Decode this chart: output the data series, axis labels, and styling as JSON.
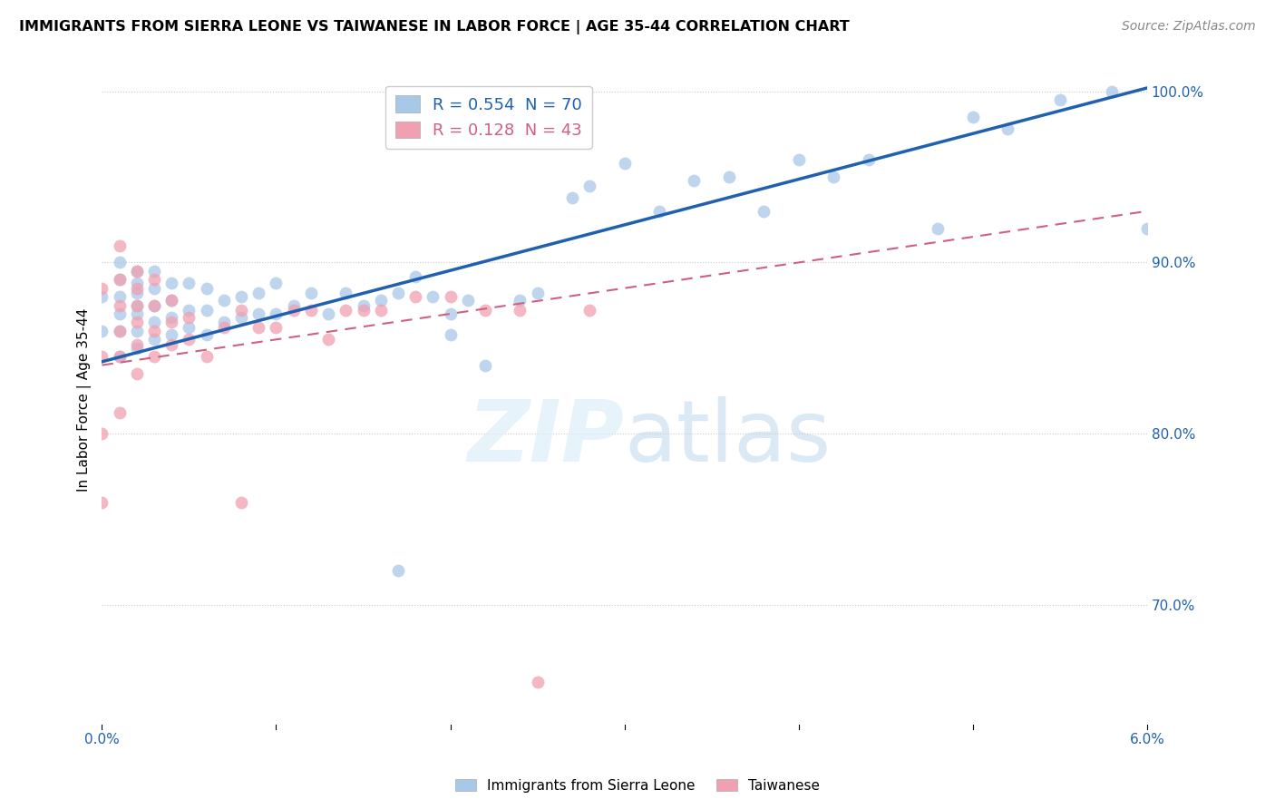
{
  "title": "IMMIGRANTS FROM SIERRA LEONE VS TAIWANESE IN LABOR FORCE | AGE 35-44 CORRELATION CHART",
  "source": "Source: ZipAtlas.com",
  "ylabel": "In Labor Force | Age 35-44",
  "legend_blue_R": "0.554",
  "legend_blue_N": "70",
  "legend_pink_R": "0.128",
  "legend_pink_N": "43",
  "legend_blue_label": "Immigrants from Sierra Leone",
  "legend_pink_label": "Taiwanese",
  "xlim": [
    0.0,
    0.06
  ],
  "ylim": [
    0.63,
    1.01
  ],
  "yticks": [
    0.7,
    0.8,
    0.9,
    1.0
  ],
  "ytick_labels": [
    "70.0%",
    "80.0%",
    "90.0%",
    "100.0%"
  ],
  "xticks": [
    0.0,
    0.01,
    0.02,
    0.03,
    0.04,
    0.05,
    0.06
  ],
  "xtick_labels": [
    "0.0%",
    "",
    "",
    "",
    "",
    "",
    "6.0%"
  ],
  "blue_color": "#a8c8e8",
  "pink_color": "#f0a0b0",
  "blue_line_color": "#2060b0",
  "pink_line_color": "#d06080",
  "watermark_zip": "ZIP",
  "watermark_atlas": "atlas",
  "blue_line_x0": 0.0,
  "blue_line_y0": 0.842,
  "blue_line_x1": 0.06,
  "blue_line_y1": 1.002,
  "pink_line_x0": 0.0,
  "pink_line_y0": 0.84,
  "pink_line_x1": 0.06,
  "pink_line_y1": 0.93,
  "blue_scatter_x": [
    0.0,
    0.0,
    0.001,
    0.001,
    0.001,
    0.001,
    0.001,
    0.001,
    0.002,
    0.002,
    0.002,
    0.002,
    0.002,
    0.002,
    0.002,
    0.003,
    0.003,
    0.003,
    0.003,
    0.003,
    0.004,
    0.004,
    0.004,
    0.004,
    0.005,
    0.005,
    0.005,
    0.006,
    0.006,
    0.006,
    0.007,
    0.007,
    0.008,
    0.008,
    0.009,
    0.009,
    0.01,
    0.01,
    0.011,
    0.012,
    0.013,
    0.014,
    0.015,
    0.016,
    0.017,
    0.018,
    0.019,
    0.02,
    0.021,
    0.022,
    0.024,
    0.025,
    0.027,
    0.028,
    0.03,
    0.032,
    0.034,
    0.036,
    0.038,
    0.04,
    0.042,
    0.044,
    0.017,
    0.02,
    0.048,
    0.05,
    0.052,
    0.055,
    0.058,
    0.06
  ],
  "blue_scatter_y": [
    0.86,
    0.88,
    0.845,
    0.86,
    0.87,
    0.88,
    0.89,
    0.9,
    0.85,
    0.86,
    0.87,
    0.875,
    0.882,
    0.888,
    0.895,
    0.855,
    0.865,
    0.875,
    0.885,
    0.895,
    0.858,
    0.868,
    0.878,
    0.888,
    0.862,
    0.872,
    0.888,
    0.858,
    0.872,
    0.885,
    0.865,
    0.878,
    0.868,
    0.88,
    0.87,
    0.882,
    0.87,
    0.888,
    0.875,
    0.882,
    0.87,
    0.882,
    0.875,
    0.878,
    0.882,
    0.892,
    0.88,
    0.87,
    0.878,
    0.84,
    0.878,
    0.882,
    0.938,
    0.945,
    0.958,
    0.93,
    0.948,
    0.95,
    0.93,
    0.96,
    0.95,
    0.96,
    0.72,
    0.858,
    0.92,
    0.985,
    0.978,
    0.995,
    1.0,
    0.92
  ],
  "pink_scatter_x": [
    0.0,
    0.0,
    0.0,
    0.0,
    0.001,
    0.001,
    0.001,
    0.001,
    0.001,
    0.001,
    0.002,
    0.002,
    0.002,
    0.002,
    0.002,
    0.002,
    0.003,
    0.003,
    0.003,
    0.003,
    0.004,
    0.004,
    0.004,
    0.005,
    0.005,
    0.006,
    0.007,
    0.008,
    0.009,
    0.01,
    0.011,
    0.012,
    0.013,
    0.014,
    0.015,
    0.016,
    0.018,
    0.02,
    0.022,
    0.024,
    0.025,
    0.028,
    0.008
  ],
  "pink_scatter_y": [
    0.76,
    0.8,
    0.845,
    0.885,
    0.812,
    0.845,
    0.86,
    0.875,
    0.89,
    0.91,
    0.835,
    0.852,
    0.865,
    0.875,
    0.885,
    0.895,
    0.845,
    0.86,
    0.875,
    0.89,
    0.852,
    0.865,
    0.878,
    0.855,
    0.868,
    0.845,
    0.862,
    0.872,
    0.862,
    0.862,
    0.872,
    0.872,
    0.855,
    0.872,
    0.872,
    0.872,
    0.88,
    0.88,
    0.872,
    0.872,
    0.655,
    0.872,
    0.76
  ]
}
